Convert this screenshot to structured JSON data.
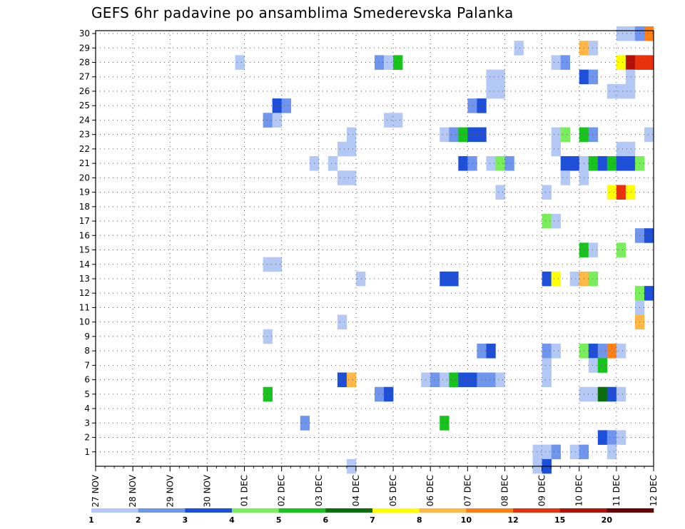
{
  "chart_data": {
    "type": "heatmap",
    "title": "GEFS 6hr padavine po ansamblima Smederevska Palanka",
    "x_labels": [
      "27 NOV",
      "28 NOV",
      "29 NOV",
      "30 NOV",
      "01 DEC",
      "02 DEC",
      "03 DEC",
      "04 DEC",
      "05 DEC",
      "06 DEC",
      "07 DEC",
      "08 DEC",
      "09 DEC",
      "10 DEC",
      "11 DEC",
      "12 DEC"
    ],
    "y_labels": [
      "1",
      "2",
      "3",
      "4",
      "5",
      "6",
      "7",
      "8",
      "9",
      "10",
      "11",
      "12",
      "13",
      "14",
      "15",
      "16",
      "17",
      "18",
      "19",
      "20",
      "21",
      "22",
      "23",
      "24",
      "25",
      "26",
      "27",
      "28",
      "29",
      "30"
    ],
    "x_step_hours": 6,
    "x_start": "27 NOV 00Z",
    "ylim": [
      0,
      30
    ],
    "grid": true,
    "colorbar": {
      "labels": [
        "1",
        "2",
        "3",
        "4",
        "5",
        "6",
        "7",
        "8",
        "10",
        "12",
        "15",
        "20"
      ],
      "colors": [
        "#b3c8f5",
        "#6f95ee",
        "#1d4fdb",
        "#78ee5a",
        "#16c41c",
        "#0a6e0a",
        "#ffff00",
        "#ffb846",
        "#ff7f14",
        "#e8320f",
        "#b2110a",
        "#6a0000"
      ]
    },
    "cells": [
      {
        "member": 30,
        "step": 57,
        "value": 1
      },
      {
        "member": 30,
        "step": 58,
        "value": 1
      },
      {
        "member": 30,
        "step": 59,
        "value": 2
      },
      {
        "member": 30,
        "step": 60,
        "value": 10
      },
      {
        "member": 29,
        "step": 46,
        "value": 1
      },
      {
        "member": 29,
        "step": 53,
        "value": 8
      },
      {
        "member": 29,
        "step": 54,
        "value": 1
      },
      {
        "member": 28,
        "step": 16,
        "value": 1
      },
      {
        "member": 28,
        "step": 31,
        "value": 2
      },
      {
        "member": 28,
        "step": 32,
        "value": 1
      },
      {
        "member": 28,
        "step": 33,
        "value": 5
      },
      {
        "member": 28,
        "step": 50,
        "value": 1
      },
      {
        "member": 28,
        "step": 51,
        "value": 2
      },
      {
        "member": 28,
        "step": 57,
        "value": 7
      },
      {
        "member": 28,
        "step": 58,
        "value": 15
      },
      {
        "member": 28,
        "step": 59,
        "value": 12
      },
      {
        "member": 28,
        "step": 60,
        "value": 12
      },
      {
        "member": 27,
        "step": 43,
        "value": 1
      },
      {
        "member": 27,
        "step": 44,
        "value": 1
      },
      {
        "member": 27,
        "step": 53,
        "value": 3
      },
      {
        "member": 27,
        "step": 54,
        "value": 2
      },
      {
        "member": 27,
        "step": 58,
        "value": 1
      },
      {
        "member": 26,
        "step": 43,
        "value": 1
      },
      {
        "member": 26,
        "step": 44,
        "value": 1
      },
      {
        "member": 26,
        "step": 56,
        "value": 1
      },
      {
        "member": 26,
        "step": 57,
        "value": 1
      },
      {
        "member": 26,
        "step": 58,
        "value": 1
      },
      {
        "member": 25,
        "step": 20,
        "value": 3
      },
      {
        "member": 25,
        "step": 21,
        "value": 2
      },
      {
        "member": 25,
        "step": 41,
        "value": 2
      },
      {
        "member": 25,
        "step": 42,
        "value": 3
      },
      {
        "member": 24,
        "step": 19,
        "value": 2
      },
      {
        "member": 24,
        "step": 20,
        "value": 1
      },
      {
        "member": 24,
        "step": 32,
        "value": 1
      },
      {
        "member": 24,
        "step": 33,
        "value": 1
      },
      {
        "member": 23,
        "step": 28,
        "value": 1
      },
      {
        "member": 23,
        "step": 38,
        "value": 1
      },
      {
        "member": 23,
        "step": 39,
        "value": 2
      },
      {
        "member": 23,
        "step": 40,
        "value": 5
      },
      {
        "member": 23,
        "step": 41,
        "value": 3
      },
      {
        "member": 23,
        "step": 42,
        "value": 3
      },
      {
        "member": 23,
        "step": 50,
        "value": 1
      },
      {
        "member": 23,
        "step": 51,
        "value": 4
      },
      {
        "member": 23,
        "step": 53,
        "value": 5
      },
      {
        "member": 23,
        "step": 54,
        "value": 2
      },
      {
        "member": 23,
        "step": 60,
        "value": 1
      },
      {
        "member": 22,
        "step": 27,
        "value": 1
      },
      {
        "member": 22,
        "step": 28,
        "value": 1
      },
      {
        "member": 22,
        "step": 50,
        "value": 1
      },
      {
        "member": 22,
        "step": 57,
        "value": 1
      },
      {
        "member": 22,
        "step": 58,
        "value": 1
      },
      {
        "member": 21,
        "step": 24,
        "value": 1
      },
      {
        "member": 21,
        "step": 26,
        "value": 1
      },
      {
        "member": 21,
        "step": 40,
        "value": 3
      },
      {
        "member": 21,
        "step": 41,
        "value": 2
      },
      {
        "member": 21,
        "step": 43,
        "value": 1
      },
      {
        "member": 21,
        "step": 44,
        "value": 4
      },
      {
        "member": 21,
        "step": 45,
        "value": 2
      },
      {
        "member": 21,
        "step": 51,
        "value": 3
      },
      {
        "member": 21,
        "step": 52,
        "value": 3
      },
      {
        "member": 21,
        "step": 53,
        "value": 1
      },
      {
        "member": 21,
        "step": 54,
        "value": 5
      },
      {
        "member": 21,
        "step": 55,
        "value": 3
      },
      {
        "member": 21,
        "step": 56,
        "value": 5
      },
      {
        "member": 21,
        "step": 57,
        "value": 3
      },
      {
        "member": 21,
        "step": 58,
        "value": 3
      },
      {
        "member": 21,
        "step": 59,
        "value": 4
      },
      {
        "member": 20,
        "step": 27,
        "value": 1
      },
      {
        "member": 20,
        "step": 28,
        "value": 1
      },
      {
        "member": 20,
        "step": 51,
        "value": 1
      },
      {
        "member": 20,
        "step": 53,
        "value": 1
      },
      {
        "member": 19,
        "step": 44,
        "value": 1
      },
      {
        "member": 19,
        "step": 49,
        "value": 1
      },
      {
        "member": 19,
        "step": 56,
        "value": 7
      },
      {
        "member": 19,
        "step": 57,
        "value": 12
      },
      {
        "member": 19,
        "step": 58,
        "value": 7
      },
      {
        "member": 17,
        "step": 49,
        "value": 4
      },
      {
        "member": 17,
        "step": 50,
        "value": 1
      },
      {
        "member": 16,
        "step": 59,
        "value": 2
      },
      {
        "member": 16,
        "step": 60,
        "value": 3
      },
      {
        "member": 15,
        "step": 53,
        "value": 5
      },
      {
        "member": 15,
        "step": 54,
        "value": 1
      },
      {
        "member": 15,
        "step": 57,
        "value": 4
      },
      {
        "member": 14,
        "step": 19,
        "value": 1
      },
      {
        "member": 14,
        "step": 20,
        "value": 1
      },
      {
        "member": 13,
        "step": 29,
        "value": 1
      },
      {
        "member": 13,
        "step": 38,
        "value": 3
      },
      {
        "member": 13,
        "step": 39,
        "value": 3
      },
      {
        "member": 13,
        "step": 49,
        "value": 3
      },
      {
        "member": 13,
        "step": 50,
        "value": 7
      },
      {
        "member": 13,
        "step": 52,
        "value": 1
      },
      {
        "member": 13,
        "step": 53,
        "value": 8
      },
      {
        "member": 13,
        "step": 54,
        "value": 4
      },
      {
        "member": 12,
        "step": 59,
        "value": 4
      },
      {
        "member": 12,
        "step": 60,
        "value": 3
      },
      {
        "member": 11,
        "step": 59,
        "value": 1
      },
      {
        "member": 10,
        "step": 27,
        "value": 1
      },
      {
        "member": 10,
        "step": 59,
        "value": 8
      },
      {
        "member": 9,
        "step": 19,
        "value": 1
      },
      {
        "member": 8,
        "step": 42,
        "value": 2
      },
      {
        "member": 8,
        "step": 43,
        "value": 3
      },
      {
        "member": 8,
        "step": 49,
        "value": 2
      },
      {
        "member": 8,
        "step": 50,
        "value": 1
      },
      {
        "member": 8,
        "step": 53,
        "value": 4
      },
      {
        "member": 8,
        "step": 54,
        "value": 3
      },
      {
        "member": 8,
        "step": 55,
        "value": 2
      },
      {
        "member": 8,
        "step": 56,
        "value": 10
      },
      {
        "member": 8,
        "step": 57,
        "value": 1
      },
      {
        "member": 7,
        "step": 49,
        "value": 1
      },
      {
        "member": 7,
        "step": 54,
        "value": 1
      },
      {
        "member": 7,
        "step": 55,
        "value": 5
      },
      {
        "member": 6,
        "step": 27,
        "value": 3
      },
      {
        "member": 6,
        "step": 28,
        "value": 8
      },
      {
        "member": 6,
        "step": 36,
        "value": 1
      },
      {
        "member": 6,
        "step": 37,
        "value": 2
      },
      {
        "member": 6,
        "step": 38,
        "value": 1
      },
      {
        "member": 6,
        "step": 39,
        "value": 5
      },
      {
        "member": 6,
        "step": 40,
        "value": 3
      },
      {
        "member": 6,
        "step": 41,
        "value": 3
      },
      {
        "member": 6,
        "step": 42,
        "value": 2
      },
      {
        "member": 6,
        "step": 43,
        "value": 2
      },
      {
        "member": 6,
        "step": 44,
        "value": 1
      },
      {
        "member": 6,
        "step": 49,
        "value": 1
      },
      {
        "member": 5,
        "step": 19,
        "value": 5
      },
      {
        "member": 5,
        "step": 31,
        "value": 2
      },
      {
        "member": 5,
        "step": 32,
        "value": 3
      },
      {
        "member": 5,
        "step": 53,
        "value": 1
      },
      {
        "member": 5,
        "step": 54,
        "value": 1
      },
      {
        "member": 5,
        "step": 55,
        "value": 6
      },
      {
        "member": 5,
        "step": 56,
        "value": 3
      },
      {
        "member": 5,
        "step": 57,
        "value": 1
      },
      {
        "member": 3,
        "step": 23,
        "value": 2
      },
      {
        "member": 3,
        "step": 38,
        "value": 5
      },
      {
        "member": 2,
        "step": 55,
        "value": 3
      },
      {
        "member": 2,
        "step": 56,
        "value": 2
      },
      {
        "member": 2,
        "step": 57,
        "value": 1
      },
      {
        "member": 1,
        "step": 48,
        "value": 1
      },
      {
        "member": 1,
        "step": 49,
        "value": 1
      },
      {
        "member": 1,
        "step": 50,
        "value": 2
      },
      {
        "member": 1,
        "step": 52,
        "value": 1
      },
      {
        "member": 1,
        "step": 53,
        "value": 2
      },
      {
        "member": 1,
        "step": 56,
        "value": 1
      },
      {
        "member": 0,
        "step": 28,
        "value": 1
      },
      {
        "member": 0,
        "step": 48,
        "value": 1
      },
      {
        "member": 0,
        "step": 49,
        "value": 3
      }
    ]
  }
}
